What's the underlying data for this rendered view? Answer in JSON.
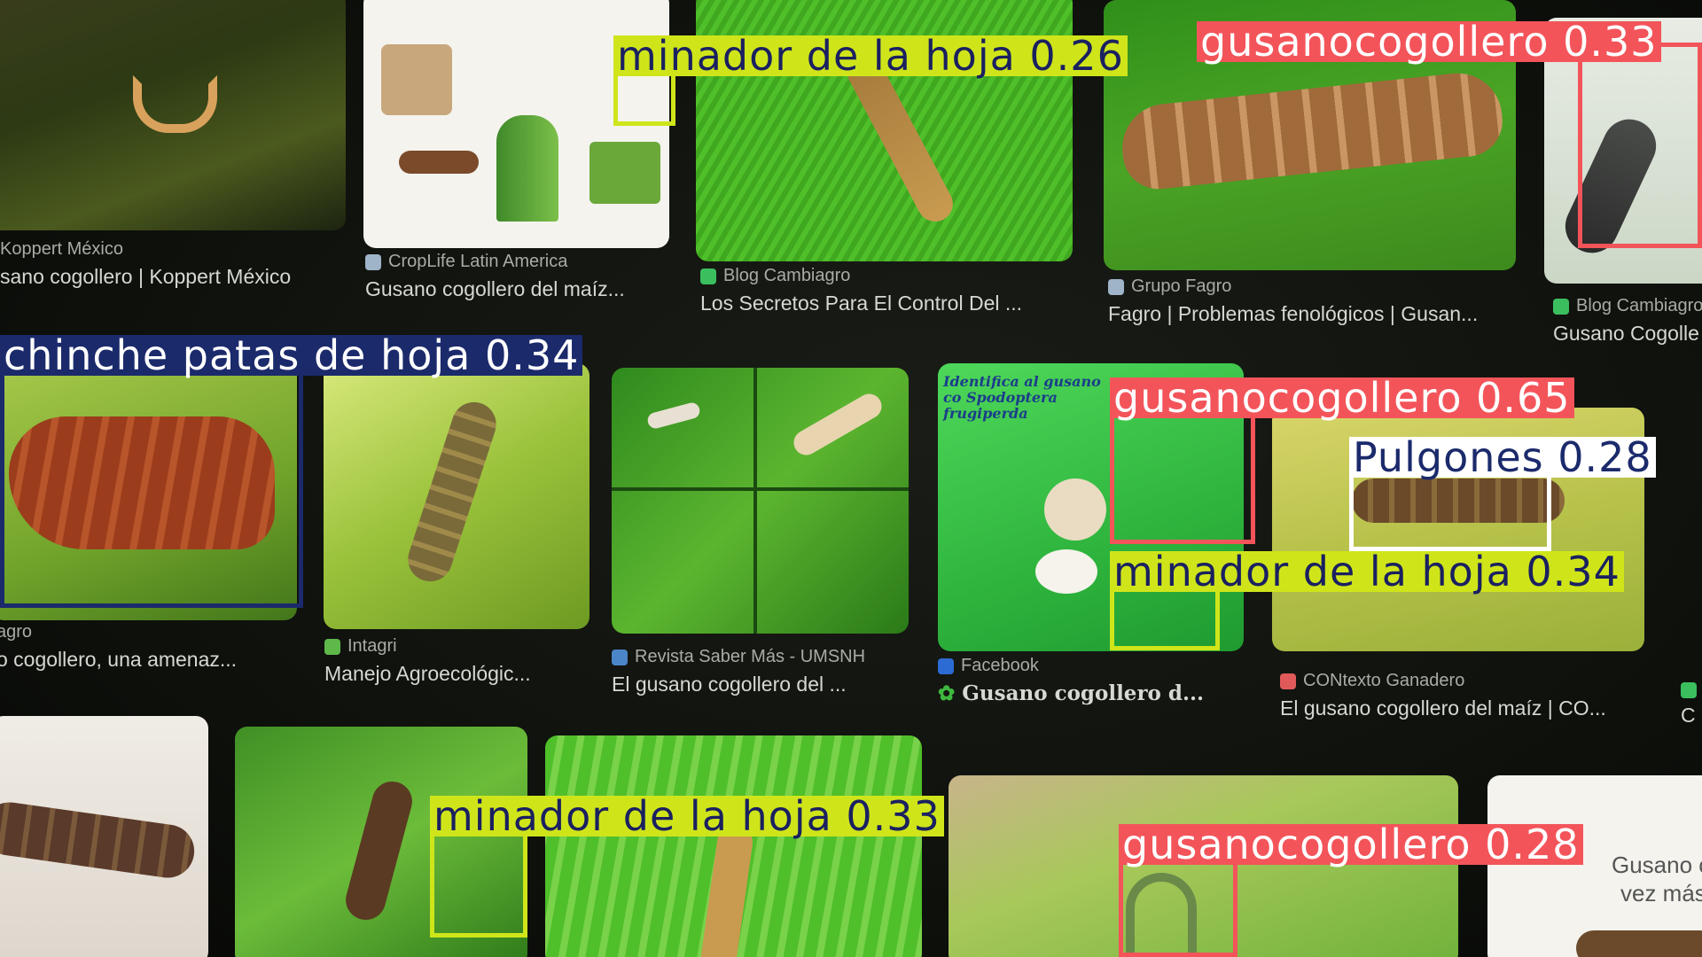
{
  "tiles": [
    {
      "src": "Koppert México",
      "title": "sano cogollero | Koppert México"
    },
    {
      "src": "CropLife Latin America",
      "title": "Gusano cogollero del maíz..."
    },
    {
      "src": "Blog Cambiagro",
      "title": "Los Secretos Para El Control Del ..."
    },
    {
      "src": "Grupo Fagro",
      "title": "Fagro | Problemas fenológicos | Gusan..."
    },
    {
      "src": "Blog Cambiagro",
      "title": "Gusano Cogolle"
    },
    {
      "src": "agro",
      "title": "o cogollero, una amenaz..."
    },
    {
      "src": "Intagri",
      "title": "Manejo Agroecológic..."
    },
    {
      "src": "Revista Saber Más - UMSNH",
      "title": "El gusano cogollero del ..."
    },
    {
      "src": "Facebook",
      "title": "Gusano cogollero d..."
    },
    {
      "src": "CONtexto Ganadero",
      "title": "El gusano cogollero del maíz | CO..."
    },
    {
      "src": "",
      "title": "C"
    }
  ],
  "doc_texts": {
    "infographic_title": "Identifica al gusano co Spodoptera frugiperda",
    "right_doc_line1": "Gusano c",
    "right_doc_line2": "vez más"
  },
  "detections": [
    {
      "label": "minador de la hoja 0.26",
      "class": "minador de la hoja",
      "score": 0.26,
      "color": "#cfe51a"
    },
    {
      "label": "gusanocogollero 0.33",
      "class": "gusanocogollero",
      "score": 0.33,
      "color": "#f3545a"
    },
    {
      "label": "chinche patas de hoja 0.34",
      "class": "chinche patas de hoja",
      "score": 0.34,
      "color": "#1b2a6b"
    },
    {
      "label": "gusanocogollero 0.65",
      "class": "gusanocogollero",
      "score": 0.65,
      "color": "#f3545a"
    },
    {
      "label": "Pulgones 0.28",
      "class": "Pulgones",
      "score": 0.28,
      "color": "#ffffff"
    },
    {
      "label": "minador de la hoja 0.34",
      "class": "minador de la hoja",
      "score": 0.34,
      "color": "#cfe51a"
    },
    {
      "label": "minador de la hoja 0.33",
      "class": "minador de la hoja",
      "score": 0.33,
      "color": "#cfe51a"
    },
    {
      "label": "gusanocogollero 0.28",
      "class": "gusanocogollero",
      "score": 0.28,
      "color": "#f3545a"
    }
  ]
}
